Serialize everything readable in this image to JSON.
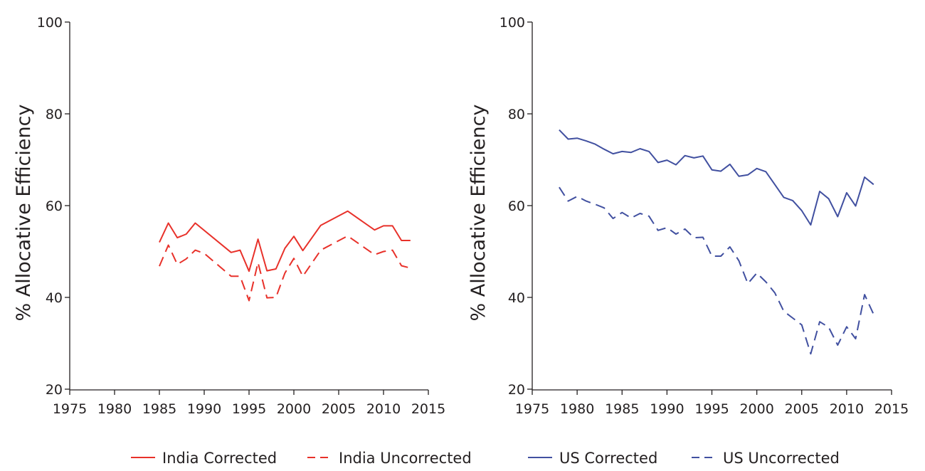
{
  "colors": {
    "india": "#e8312a",
    "us": "#4150a0",
    "axis": "#231f20"
  },
  "legend": [
    {
      "label": "India Corrected",
      "color": "#e8312a",
      "dash": "solid"
    },
    {
      "label": "India Uncorrected",
      "color": "#e8312a",
      "dash": "dashed"
    },
    {
      "label": "US Corrected",
      "color": "#4150a0",
      "dash": "solid"
    },
    {
      "label": "US Uncorrected",
      "color": "#4150a0",
      "dash": "dashed"
    }
  ],
  "chart_data": [
    {
      "type": "line",
      "title": "",
      "xlabel": "",
      "ylabel": "% Allocative Efficiency",
      "xlim": [
        1975,
        2015
      ],
      "ylim": [
        20,
        100
      ],
      "xticks": [
        1975,
        1980,
        1985,
        1990,
        1995,
        2000,
        2005,
        2010,
        2015
      ],
      "yticks": [
        20,
        40,
        60,
        80,
        100
      ],
      "grid": false,
      "series": [
        {
          "name": "India Corrected",
          "color": "#e8312a",
          "dash": "solid",
          "x": [
            1985,
            1986,
            1987,
            1988,
            1989,
            1993,
            1994,
            1995,
            1996,
            1997,
            1998,
            1999,
            2000,
            2001,
            2003,
            2006,
            2009,
            2010,
            2011,
            2012,
            2013
          ],
          "y": [
            52.0,
            56.2,
            53.0,
            53.8,
            56.2,
            49.8,
            50.3,
            45.7,
            52.7,
            45.8,
            46.2,
            50.7,
            53.3,
            50.2,
            55.7,
            58.8,
            54.7,
            55.6,
            55.6,
            52.4,
            52.4
          ]
        },
        {
          "name": "India Uncorrected",
          "color": "#e8312a",
          "dash": "dashed",
          "x": [
            1985,
            1986,
            1987,
            1988,
            1989,
            1990,
            1993,
            1994,
            1995,
            1996,
            1997,
            1998,
            1999,
            2000,
            2001,
            2003,
            2006,
            2009,
            2010,
            2011,
            2012,
            2013
          ],
          "y": [
            46.8,
            51.4,
            47.2,
            48.4,
            50.3,
            49.6,
            44.6,
            44.6,
            39.3,
            47.6,
            39.9,
            40.0,
            45.3,
            48.5,
            44.6,
            50.3,
            53.4,
            49.3,
            50.0,
            50.3,
            46.9,
            46.4
          ]
        }
      ]
    },
    {
      "type": "line",
      "title": "",
      "xlabel": "",
      "ylabel": "% Allocative Efficiency",
      "xlim": [
        1975,
        2015
      ],
      "ylim": [
        20,
        100
      ],
      "xticks": [
        1975,
        1980,
        1985,
        1990,
        1995,
        2000,
        2005,
        2010,
        2015
      ],
      "yticks": [
        20,
        40,
        60,
        80,
        100
      ],
      "grid": false,
      "series": [
        {
          "name": "US Corrected",
          "color": "#4150a0",
          "dash": "solid",
          "x": [
            1978,
            1979,
            1980,
            1981,
            1982,
            1983,
            1984,
            1985,
            1986,
            1987,
            1988,
            1989,
            1990,
            1991,
            1992,
            1993,
            1994,
            1995,
            1996,
            1997,
            1998,
            1999,
            2000,
            2001,
            2002,
            2003,
            2004,
            2005,
            2006,
            2007,
            2008,
            2009,
            2010,
            2011,
            2012,
            2013
          ],
          "y": [
            76.5,
            74.5,
            74.7,
            74.1,
            73.4,
            72.3,
            71.3,
            71.8,
            71.6,
            72.4,
            71.8,
            69.4,
            69.9,
            68.9,
            70.9,
            70.4,
            70.8,
            67.8,
            67.5,
            69.0,
            66.4,
            66.7,
            68.1,
            67.4,
            64.6,
            61.8,
            61.1,
            58.9,
            55.8,
            63.1,
            61.5,
            57.6,
            62.8,
            59.9,
            66.2,
            64.6
          ]
        },
        {
          "name": "US Uncorrected",
          "color": "#4150a0",
          "dash": "dashed",
          "x": [
            1978,
            1979,
            1980,
            1981,
            1982,
            1983,
            1984,
            1985,
            1986,
            1987,
            1988,
            1989,
            1990,
            1991,
            1992,
            1993,
            1994,
            1995,
            1996,
            1997,
            1998,
            1999,
            2000,
            2001,
            2002,
            2003,
            2004,
            2005,
            2006,
            2007,
            2008,
            2009,
            2010,
            2011,
            2012,
            2013
          ],
          "y": [
            64.0,
            61.0,
            62.0,
            61.0,
            60.3,
            59.5,
            57.2,
            58.5,
            57.3,
            58.3,
            57.7,
            54.6,
            55.2,
            53.8,
            54.9,
            53.0,
            53.1,
            49.0,
            49.0,
            51.0,
            48.0,
            43.0,
            45.3,
            43.4,
            41.0,
            37.0,
            35.5,
            34.0,
            27.7,
            34.7,
            33.5,
            29.6,
            33.6,
            31.0,
            40.6,
            36.3
          ]
        }
      ]
    }
  ]
}
